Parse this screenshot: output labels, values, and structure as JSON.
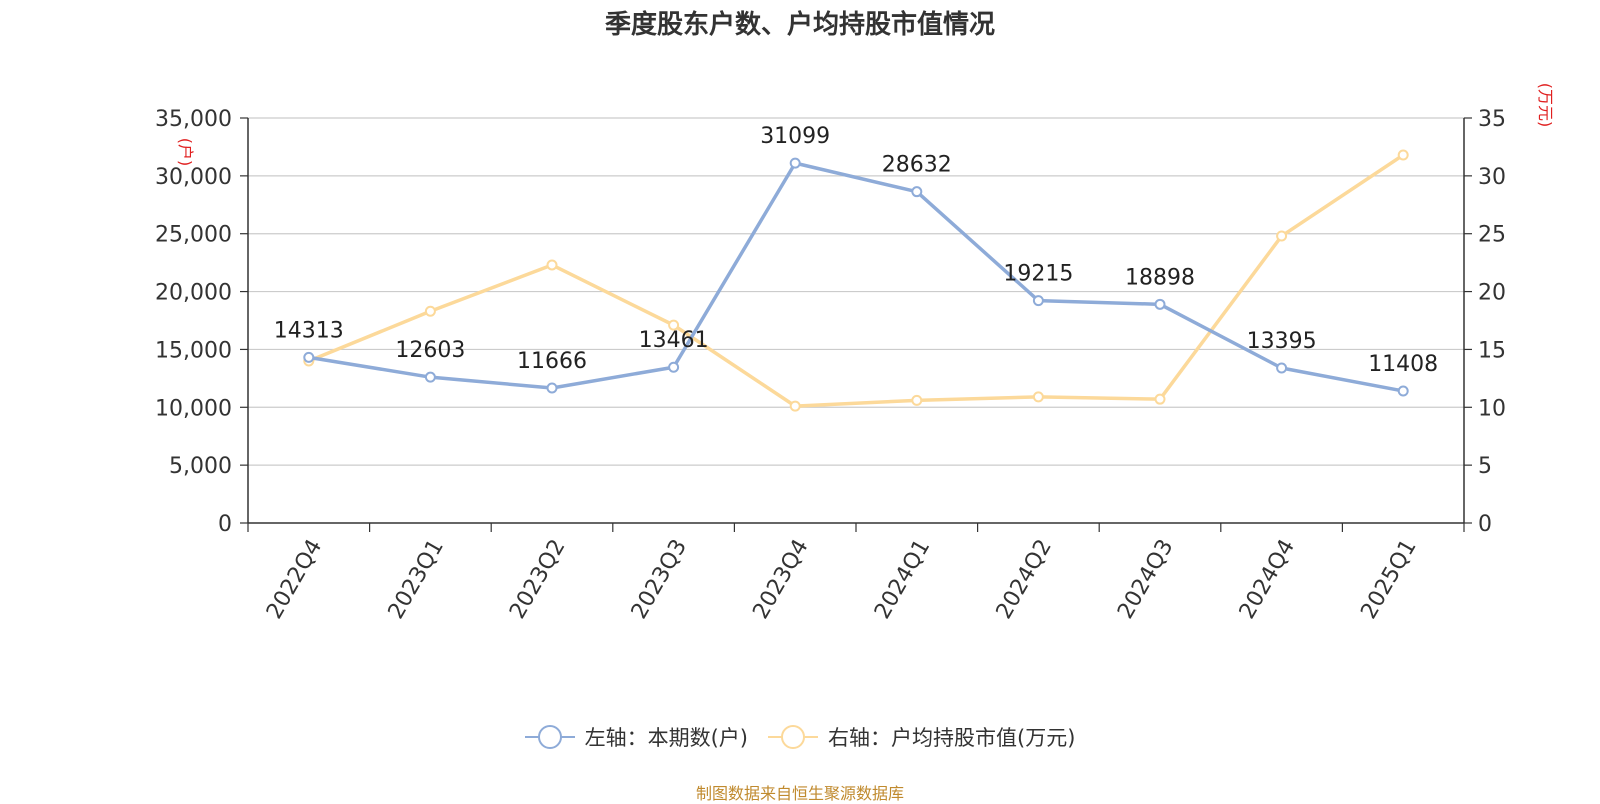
{
  "chart_data": {
    "type": "line",
    "title": "季度股东户数、户均持股市值情况",
    "categories": [
      "2022Q4",
      "2023Q1",
      "2023Q2",
      "2023Q3",
      "2023Q4",
      "2024Q1",
      "2024Q2",
      "2024Q3",
      "2024Q4",
      "2025Q1"
    ],
    "y_left": {
      "label": "(户)",
      "min": 0,
      "max": 35000,
      "step": 5000,
      "ticks": [
        "0",
        "5,000",
        "10,000",
        "15,000",
        "20,000",
        "25,000",
        "30,000",
        "35,000"
      ]
    },
    "y_right": {
      "label": "(万元)",
      "min": 0,
      "max": 35,
      "step": 5,
      "ticks": [
        "0",
        "5",
        "10",
        "15",
        "20",
        "25",
        "30",
        "35"
      ]
    },
    "series": [
      {
        "name": "左轴：本期数(户)",
        "axis": "left",
        "color": "#8eabd8",
        "values": [
          14313,
          12603,
          11666,
          13461,
          31099,
          28632,
          19215,
          18898,
          13395,
          11408
        ],
        "labels": [
          "14313",
          "12603",
          "11666",
          "13461",
          "31099",
          "28632",
          "19215",
          "18898",
          "13395",
          "11408"
        ]
      },
      {
        "name": "右轴：户均持股市值(万元)",
        "axis": "right",
        "color": "#fcd99a",
        "values": [
          14.0,
          18.3,
          22.3,
          17.1,
          10.1,
          10.6,
          10.9,
          10.7,
          24.8,
          31.8
        ]
      }
    ],
    "grid": true,
    "legend_position": "bottom"
  },
  "source": "制图数据来自恒生聚源数据库"
}
